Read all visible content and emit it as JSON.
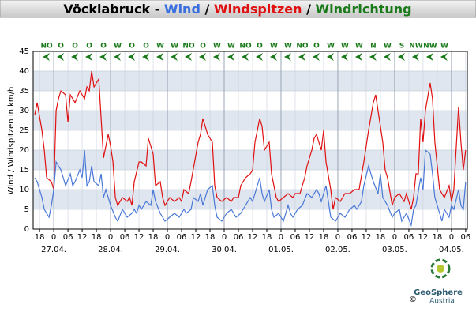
{
  "chart_data": {
    "type": "line",
    "title_parts": [
      {
        "text": "Vöcklabruck - ",
        "color": "#000000"
      },
      {
        "text": "Wind",
        "color": "#3a6fe0"
      },
      {
        "text": " / ",
        "color": "#000000"
      },
      {
        "text": "Windspitzen",
        "color": "#e01010"
      },
      {
        "text": " / ",
        "color": "#000000"
      },
      {
        "text": "Windrichtung",
        "color": "#1a7a1a"
      }
    ],
    "y_label": "Wind / Windspitzen in km/h",
    "xlim": [
      -8.7,
      174.7
    ],
    "ylim": [
      0,
      45
    ],
    "yticks": [
      0,
      5,
      10,
      15,
      20,
      25,
      30,
      35,
      40,
      45
    ],
    "xticks": [
      {
        "value": -6,
        "label": "18"
      },
      {
        "value": 0,
        "label": "0"
      },
      {
        "value": 6,
        "label": "06"
      },
      {
        "value": 12,
        "label": "12"
      },
      {
        "value": 18,
        "label": "18"
      },
      {
        "value": 24,
        "label": "0"
      },
      {
        "value": 30,
        "label": "06"
      },
      {
        "value": 36,
        "label": "12"
      },
      {
        "value": 42,
        "label": "18"
      },
      {
        "value": 48,
        "label": "0"
      },
      {
        "value": 54,
        "label": "06"
      },
      {
        "value": 60,
        "label": "12"
      },
      {
        "value": 66,
        "label": "18"
      },
      {
        "value": 72,
        "label": "0"
      },
      {
        "value": 78,
        "label": "06"
      },
      {
        "value": 84,
        "label": "12"
      },
      {
        "value": 90,
        "label": "18"
      },
      {
        "value": 96,
        "label": "0"
      },
      {
        "value": 102,
        "label": "06"
      },
      {
        "value": 108,
        "label": "12"
      },
      {
        "value": 114,
        "label": "18"
      },
      {
        "value": 120,
        "label": "0"
      },
      {
        "value": 126,
        "label": "06"
      },
      {
        "value": 132,
        "label": "12"
      },
      {
        "value": 138,
        "label": "18"
      },
      {
        "value": 144,
        "label": "0"
      },
      {
        "value": 150,
        "label": "06"
      },
      {
        "value": 156,
        "label": "12"
      },
      {
        "value": 162,
        "label": "18"
      },
      {
        "value": 168,
        "label": "0"
      },
      {
        "value": 174,
        "label": "06"
      }
    ],
    "day_ticks": [
      {
        "value": 0,
        "label": "27.04."
      },
      {
        "value": 24,
        "label": "28.04."
      },
      {
        "value": 48,
        "label": "29.04."
      },
      {
        "value": 72,
        "label": "30.04."
      },
      {
        "value": 96,
        "label": "01.05."
      },
      {
        "value": 120,
        "label": "02.05."
      },
      {
        "value": 144,
        "label": "03.05."
      },
      {
        "value": 168,
        "label": "04.05."
      }
    ],
    "grid": true,
    "series": [
      {
        "name": "Windspitzen",
        "color": "#e01010",
        "x": [
          -8,
          -7,
          -5,
          -4,
          -3,
          -1,
          0,
          1,
          2,
          3,
          5,
          6,
          7,
          9,
          11,
          13,
          14,
          15,
          16,
          17,
          19,
          20,
          21,
          23,
          24,
          25,
          26,
          27,
          29,
          31,
          32,
          33,
          34,
          36,
          37,
          39,
          40,
          42,
          43,
          45,
          46,
          47,
          49,
          51,
          53,
          54,
          55,
          57,
          58,
          61,
          62,
          63,
          65,
          67,
          68,
          69,
          71,
          73,
          75,
          76,
          78,
          79,
          81,
          83,
          84,
          85,
          87,
          88,
          89,
          91,
          92,
          94,
          95,
          97,
          99,
          101,
          102,
          104,
          106,
          107,
          109,
          110,
          111,
          113,
          114,
          115,
          117,
          118,
          119,
          121,
          123,
          125,
          127,
          129,
          131,
          133,
          135,
          136,
          137,
          139,
          140,
          141,
          143,
          144,
          146,
          148,
          149,
          151,
          152,
          153,
          154,
          155,
          156,
          157,
          159,
          160,
          161,
          163,
          164,
          165,
          167,
          168,
          169,
          171,
          172,
          173,
          174
        ],
        "values": [
          29,
          32,
          25,
          20,
          13,
          12,
          10,
          30,
          33,
          35,
          34,
          27,
          34,
          32,
          35,
          33,
          36,
          35,
          40,
          36,
          38,
          28,
          18,
          24,
          21,
          17,
          8,
          6,
          8,
          7,
          8,
          6,
          12,
          17,
          17,
          16,
          23,
          19,
          11,
          12,
          8,
          6,
          8,
          7,
          8,
          7,
          10,
          9,
          12,
          22,
          24,
          28,
          24,
          22,
          11,
          8,
          7,
          8,
          7,
          8,
          8,
          11,
          13,
          14,
          15,
          22,
          28,
          26,
          20,
          22,
          14,
          8,
          7,
          8,
          9,
          8,
          9,
          9,
          13,
          16,
          20,
          23,
          24,
          20,
          25,
          17,
          10,
          5,
          8,
          7,
          9,
          9,
          10,
          10,
          17,
          25,
          32,
          34,
          30,
          22,
          15,
          13,
          6,
          8,
          9,
          7,
          9,
          5,
          8,
          14,
          14,
          28,
          22,
          30,
          37,
          33,
          22,
          10,
          9,
          8,
          11,
          7,
          10,
          31,
          22,
          15,
          20
        ]
      },
      {
        "name": "Wind",
        "color": "#4a78d8",
        "x": [
          -8,
          -7,
          -5,
          -4,
          -3,
          -2,
          -1,
          0,
          1,
          3,
          4,
          5,
          7,
          8,
          9,
          11,
          12,
          13,
          14,
          15,
          16,
          17,
          19,
          20,
          21,
          22,
          24,
          26,
          27,
          29,
          31,
          33,
          34,
          35,
          36,
          37,
          39,
          41,
          42,
          43,
          45,
          46,
          47,
          49,
          51,
          53,
          55,
          56,
          58,
          59,
          61,
          62,
          63,
          65,
          67,
          68,
          69,
          71,
          73,
          75,
          76,
          77,
          79,
          81,
          83,
          84,
          87,
          88,
          89,
          91,
          92,
          93,
          95,
          97,
          99,
          100,
          101,
          103,
          105,
          107,
          109,
          111,
          112,
          113,
          115,
          116,
          117,
          119,
          121,
          123,
          125,
          127,
          128,
          130,
          131,
          133,
          134,
          135,
          137,
          138,
          139,
          141,
          143,
          144,
          146,
          147,
          149,
          151,
          152,
          153,
          155,
          156,
          157,
          159,
          160,
          161,
          163,
          164,
          165,
          167,
          168,
          169,
          171,
          172,
          173,
          174
        ],
        "values": [
          13,
          12,
          8,
          5,
          4,
          3,
          6,
          10,
          17,
          15,
          13,
          11,
          14,
          11,
          12,
          15,
          13,
          20,
          11,
          12,
          16,
          12,
          11,
          14,
          8,
          10,
          6,
          3,
          2,
          5,
          3,
          4,
          5,
          4,
          6,
          5,
          7,
          6,
          10,
          7,
          4,
          3,
          2,
          3,
          4,
          3,
          5,
          4,
          5,
          8,
          7,
          9,
          6,
          10,
          11,
          6,
          3,
          2,
          4,
          5,
          4,
          3,
          4,
          6,
          8,
          7,
          13,
          9,
          7,
          10,
          5,
          3,
          4,
          2,
          6,
          4,
          3,
          5,
          6,
          9,
          8,
          10,
          9,
          7,
          11,
          7,
          3,
          2,
          4,
          3,
          5,
          6,
          5,
          7,
          11,
          16,
          14,
          12,
          9,
          14,
          8,
          6,
          3,
          4,
          5,
          2,
          4,
          1,
          5,
          6,
          13,
          10,
          20,
          19,
          14,
          8,
          4,
          2,
          5,
          3,
          6,
          5,
          10,
          6,
          5,
          12
        ]
      }
    ],
    "direction": {
      "color": "#1a7a1a",
      "x": [
        -3,
        3,
        9,
        15,
        21,
        27,
        33,
        39,
        45,
        51,
        57,
        63,
        69,
        75,
        81,
        87,
        93,
        99,
        105,
        111,
        117,
        123,
        129,
        135,
        141,
        147,
        153,
        159,
        165
      ],
      "labels": [
        "NO",
        "O",
        "O",
        "O",
        "O",
        "W",
        "O",
        "O",
        "W",
        "W",
        "NO",
        "O",
        "W",
        "W",
        "NO",
        "O",
        "W",
        "W",
        "NO",
        "O",
        "W",
        "W",
        "W",
        "N",
        "W",
        "S",
        "NW",
        "NW",
        "W"
      ]
    },
    "logo": {
      "name": "GeoSphere",
      "sub": "Austria",
      "copyright": "©"
    }
  }
}
